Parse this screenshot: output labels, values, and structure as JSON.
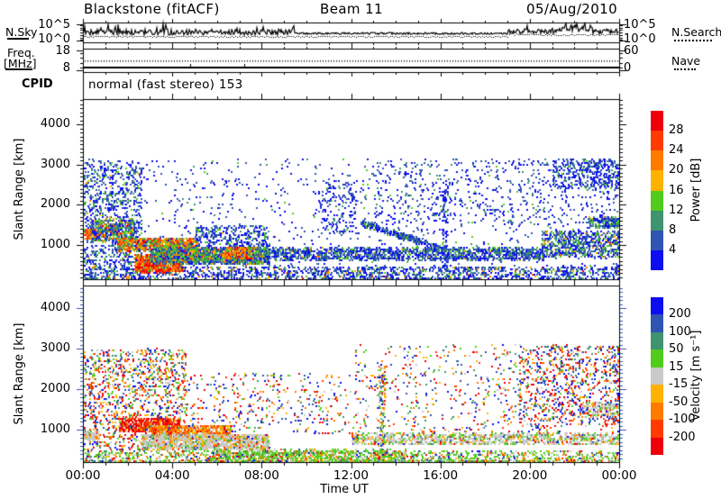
{
  "header": {
    "station_title": "Blackstone (fitACF)",
    "beam_label": "Beam 11",
    "date_label": "05/Aug/2010"
  },
  "noise_panel": {
    "left_label": "N.Sky",
    "y_top_label": "10^5",
    "y_bottom_label": "10^0",
    "right_y_top_label": "10^5",
    "right_y_bottom_label": "10^0",
    "right_series_label": "N.Search"
  },
  "freq_panel": {
    "left_label_line1": "Freq.",
    "left_label_line2": "[MHz]",
    "y_top_label": "18",
    "y_bottom_label": "8",
    "right_y_top_label": "60",
    "right_y_bottom_label": "0",
    "right_series_label": "Nave"
  },
  "cpid_row": {
    "label": "CPID",
    "value": "normal (fast stereo) 153"
  },
  "xaxis": {
    "label": "Time UT",
    "tick_labels": [
      "00:00",
      "04:00",
      "08:00",
      "12:00",
      "16:00",
      "20:00",
      "00:00"
    ]
  },
  "power_panel": {
    "ylabel": "Slant Range [km]",
    "ytick_labels": [
      "1000",
      "2000",
      "3000",
      "4000"
    ]
  },
  "velocity_panel": {
    "ylabel": "Slant Range [km]",
    "ytick_labels": [
      "1000",
      "2000",
      "3000",
      "4000"
    ]
  },
  "power_colorbar": {
    "title": "Power [dB]",
    "tick_labels": [
      "28",
      "24",
      "20",
      "16",
      "12",
      "8",
      "4"
    ],
    "colors_top_to_bottom": [
      "#ee0009",
      "#ff3b00",
      "#ff7b00",
      "#ffb200",
      "#51cc1c",
      "#3f9470",
      "#2f54b2",
      "#0d0df0"
    ]
  },
  "velocity_colorbar": {
    "title": "Velocity [m s⁻¹]",
    "tick_labels": [
      "200",
      "100",
      "50",
      "15",
      "-15",
      "-50",
      "-100",
      "-200"
    ],
    "colors_top_to_bottom": [
      "#0d0df0",
      "#2f54b2",
      "#3f9470",
      "#51cc1c",
      "#c9c9c9",
      "#ffb200",
      "#ff7b00",
      "#ff3b00",
      "#ee0009"
    ]
  },
  "chart_data": {
    "type": "scatter",
    "seed": 42,
    "x_range_hours": [
      0,
      24
    ],
    "x_major_tick_hours": [
      0,
      4,
      8,
      12,
      16,
      20,
      24
    ],
    "panels": [
      {
        "id": "power",
        "ylabel": "Slant Range [km]",
        "ylim_km": [
          150,
          4630
        ],
        "ytick_km": [
          1000,
          2000,
          3000,
          4000
        ],
        "color_thresholds_dB": [
          4,
          8,
          12,
          16,
          20,
          24,
          28
        ],
        "palette_low_to_high": [
          "#0d0df0",
          "#2f54b2",
          "#3f9470",
          "#51cc1c",
          "#ffb200",
          "#ff7b00",
          "#ff3b00",
          "#ee0009"
        ],
        "regions": [
          {
            "x": [
              0,
              24
            ],
            "y": [
              150,
              3150
            ],
            "n": 1100,
            "w": [
              5,
              5,
              1,
              0.5,
              0,
              0,
              0,
              0
            ]
          },
          {
            "x": [
              0,
              24
            ],
            "y": [
              150,
              480
            ],
            "n": 1500,
            "w": [
              5,
              4,
              2,
              1,
              0.4,
              0.3,
              0.2,
              0.1
            ]
          },
          {
            "x": [
              0,
              2.6
            ],
            "y": [
              480,
              3100
            ],
            "n": 800,
            "w": [
              4,
              4,
              1.5,
              0.8,
              0.2,
              0.1,
              0,
              0
            ]
          },
          {
            "x": [
              0.05,
              0.6
            ],
            "y": [
              1150,
              1400
            ],
            "n": 90,
            "w": [
              0,
              0,
              0,
              0,
              1,
              3,
              3,
              1
            ]
          },
          {
            "x": [
              0.3,
              2.3
            ],
            "y": [
              1100,
              1650
            ],
            "n": 450,
            "w": [
              2,
              3,
              2,
              2,
              1,
              0.5,
              0.3,
              0.2
            ]
          },
          {
            "x": [
              1.5,
              5.1
            ],
            "y": [
              860,
              1180
            ],
            "n": 900,
            "w": [
              0.5,
              1,
              2,
              3,
              2,
              3,
              2,
              1
            ]
          },
          {
            "x": [
              2.3,
              4.4
            ],
            "y": [
              330,
              780
            ],
            "n": 800,
            "w": [
              0.2,
              0.3,
              0.5,
              1,
              1,
              2,
              4,
              4
            ]
          },
          {
            "x": [
              3.0,
              8.3
            ],
            "y": [
              540,
              950
            ],
            "n": 1700,
            "w": [
              2,
              3,
              3,
              3,
              1,
              0.5,
              0.3,
              0.1
            ]
          },
          {
            "x": [
              6.3,
              7.6
            ],
            "y": [
              650,
              950
            ],
            "n": 250,
            "w": [
              0.3,
              0.5,
              1,
              2,
              2,
              3,
              2,
              1
            ]
          },
          {
            "x": [
              5,
              8.3
            ],
            "y": [
              950,
              1500
            ],
            "n": 300,
            "w": [
              4,
              4,
              1.5,
              0.5,
              0.1,
              0,
              0,
              0
            ]
          },
          {
            "x": [
              8.3,
              20.6
            ],
            "y": [
              640,
              940
            ],
            "n": 1500,
            "w": [
              4,
              4,
              2,
              1,
              0.2,
              0.1,
              0,
              0
            ]
          },
          {
            "line": {
              "x": [
                12.4,
                16.2
              ],
              "y": [
                1560,
                900
              ]
            },
            "spread": 120,
            "n": 380,
            "w": [
              4,
              4,
              2,
              1,
              0.2,
              0,
              0,
              0
            ]
          },
          {
            "x": [
              10.5,
              12.2
            ],
            "y": [
              1300,
              2600
            ],
            "n": 150,
            "w": [
              5,
              4,
              1,
              0.3,
              0,
              0,
              0,
              0
            ]
          },
          {
            "x": [
              13,
              24
            ],
            "y": [
              1500,
              3150
            ],
            "n": 500,
            "w": [
              5,
              4,
              1,
              0.2,
              0,
              0,
              0,
              0
            ]
          },
          {
            "x": [
              20.5,
              24
            ],
            "y": [
              700,
              1350
            ],
            "n": 700,
            "w": [
              3,
              4,
              2,
              1.5,
              0.5,
              0.2,
              0,
              0
            ]
          },
          {
            "x": [
              21,
              24
            ],
            "y": [
              2400,
              3150
            ],
            "n": 350,
            "w": [
              5,
              4,
              1.5,
              0.5,
              0,
              0,
              0,
              0
            ]
          },
          {
            "x": [
              22.6,
              24
            ],
            "y": [
              1450,
              1700
            ],
            "n": 220,
            "w": [
              3,
              3,
              3,
              2,
              0.3,
              0,
              0,
              0
            ]
          },
          {
            "x": [
              16.05,
              16.3
            ],
            "y": [
              300,
              2400
            ],
            "n": 90,
            "w": [
              5,
              4,
              1,
              0.5,
              0,
              0,
              0,
              0
            ]
          }
        ]
      },
      {
        "id": "velocity",
        "ylabel": "Slant Range [km]",
        "ylim_km": [
          200,
          4560
        ],
        "ytick_km": [
          1000,
          2000,
          3000,
          4000
        ],
        "color_thresholds_ms": [
          -200,
          -100,
          -50,
          -15,
          15,
          50,
          100,
          200
        ],
        "palette_pos_to_neg": [
          "#0d0df0",
          "#2f54b2",
          "#3f9470",
          "#51cc1c",
          "#c9c9c9",
          "#ffb200",
          "#ff7b00",
          "#ff3b00",
          "#ee0009"
        ],
        "regions": [
          {
            "x": [
              0,
              24
            ],
            "y": [
              150,
              480
            ],
            "n": 1500,
            "w": [
              0.5,
              0.5,
              1,
              5,
              2,
              1,
              0.8,
              0.6,
              0.6
            ]
          },
          {
            "x": [
              0,
              4.6
            ],
            "y": [
              480,
              3000
            ],
            "n": 1300,
            "w": [
              1.5,
              2,
              1,
              1.5,
              0.8,
              1.5,
              1.5,
              1.5,
              2
            ]
          },
          {
            "x": [
              0,
              0.7
            ],
            "y": [
              740,
              960
            ],
            "n": 90,
            "w": [
              0,
              0,
              0,
              0.3,
              5,
              0.5,
              0.3,
              0,
              0
            ]
          },
          {
            "x": [
              1.6,
              4.3
            ],
            "y": [
              940,
              1280
            ],
            "n": 500,
            "w": [
              0.2,
              0.2,
              0.1,
              0.2,
              0.3,
              0.5,
              1,
              2,
              5
            ]
          },
          {
            "x": [
              3.0,
              6.6
            ],
            "y": [
              840,
              1120
            ],
            "n": 550,
            "w": [
              0.1,
              0.1,
              0.1,
              0.3,
              1,
              2,
              4,
              2,
              0.5
            ]
          },
          {
            "x": [
              2.6,
              8.3
            ],
            "y": [
              520,
              900
            ],
            "n": 1500,
            "w": [
              0.2,
              0.2,
              0.3,
              1,
              6,
              1,
              0.5,
              0.3,
              0.2
            ]
          },
          {
            "x": [
              4.6,
              12
            ],
            "y": [
              900,
              2400
            ],
            "n": 400,
            "w": [
              1.5,
              2,
              0.7,
              1,
              0.5,
              1,
              1,
              1.2,
              1.5
            ]
          },
          {
            "x": [
              6,
              14.5
            ],
            "y": [
              180,
              520
            ],
            "n": 700,
            "w": [
              0.3,
              0.3,
              0.8,
              6,
              1.5,
              1,
              0.5,
              0.3,
              0.3
            ]
          },
          {
            "x": [
              12,
              24
            ],
            "y": [
              640,
              920
            ],
            "n": 1200,
            "w": [
              0.3,
              0.3,
              0.6,
              2,
              6,
              1,
              0.5,
              0.3,
              0.3
            ]
          },
          {
            "x": [
              12,
              24
            ],
            "y": [
              920,
              3100
            ],
            "n": 700,
            "w": [
              1.5,
              2,
              0.8,
              1,
              0.6,
              1,
              1,
              1.2,
              1.5
            ]
          },
          {
            "x": [
              19.5,
              24
            ],
            "y": [
              1100,
              3100
            ],
            "n": 700,
            "w": [
              2,
              2.5,
              0.8,
              1,
              0.5,
              1,
              1,
              1.5,
              2.5
            ]
          },
          {
            "x": [
              22.3,
              24
            ],
            "y": [
              1330,
              1700
            ],
            "n": 150,
            "w": [
              0.2,
              0.2,
              0.3,
              1,
              6,
              0.8,
              0.3,
              0.2,
              0.2
            ]
          },
          {
            "x": [
              13.2,
              13.5
            ],
            "y": [
              200,
              2600
            ],
            "n": 120,
            "w": [
              1,
              1,
              1,
              3,
              1,
              1,
              1,
              1,
              1
            ]
          }
        ]
      }
    ],
    "noise_series": {
      "solid_segments": [
        {
          "t0": 0,
          "t1": 9.5,
          "mean": 0.48,
          "noise": 0.3,
          "spike": 0.06
        },
        {
          "t0": 9.5,
          "t1": 19,
          "mean": 0.55,
          "noise": 0.1,
          "spike": 0.004
        },
        {
          "t0": 19,
          "t1": 21.3,
          "mean": 0.45,
          "noise": 0.22,
          "spike": 0.02
        },
        {
          "t0": 21.3,
          "t1": 22.8,
          "mean": 0.3,
          "noise": 0.38,
          "spike": 0.1
        },
        {
          "t0": 22.8,
          "t1": 24,
          "mean": 0.45,
          "noise": 0.25,
          "spike": 0.03
        }
      ],
      "dotted_segments": [
        {
          "t0": 0,
          "t1": 19,
          "mean": 0.7,
          "noise": 0.05
        },
        {
          "t0": 19,
          "t1": 24,
          "mean": 0.6,
          "noise": 0.08
        }
      ]
    },
    "freq_series": {
      "solid_frac_from_top": 0.78,
      "dotted_frac_from_top": 0.5,
      "glitch_hours": [
        4.8,
        7.2
      ]
    }
  }
}
